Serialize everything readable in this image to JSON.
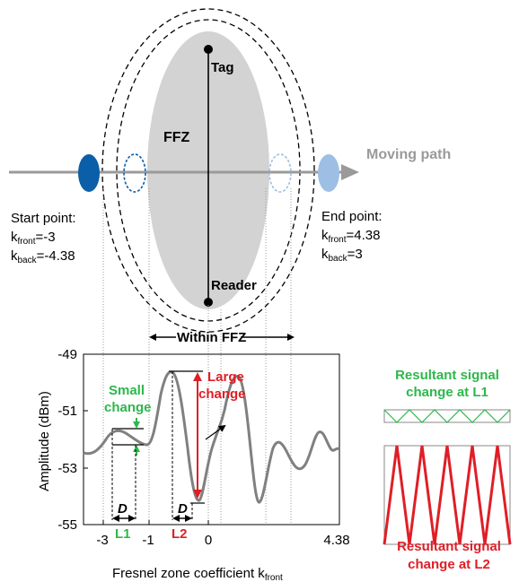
{
  "top": {
    "tag_label": "Tag",
    "ffz_label": "FFZ",
    "reader_label": "Reader",
    "moving_path_label": "Moving path",
    "start": {
      "title": "Start point:",
      "k": "k",
      "front_sub": "front",
      "front_val": "=-3",
      "back_sub": "back",
      "back_val": "=-4.38"
    },
    "end": {
      "title": "End point:",
      "k": "k",
      "front_sub": "front",
      "front_val": "=4.38",
      "back_sub": "back",
      "back_val": "=3"
    },
    "within_label": "Within FFZ"
  },
  "plot": {
    "ylabel": "Amplitude (dBm)",
    "yticks": [
      "-49",
      "-51",
      "-53",
      "-55"
    ],
    "xticks": [
      "-3",
      "-1",
      "0",
      "4.38"
    ],
    "xlabel_main": "Fresnel zone coefficient k",
    "xlabel_sub": "front",
    "small_change_line1": "Small",
    "small_change_line2": "change",
    "large_change_line1": "Large",
    "large_change_line2": "change",
    "D_label": "D",
    "L1_label": "L1",
    "L2_label": "L2"
  },
  "right": {
    "l1_title_line1": "Resultant signal",
    "l1_title_line2": "change at L1",
    "l2_title_line1": "Resultant signal",
    "l2_title_line2": "change at L2"
  },
  "colors": {
    "green": "#2db84b",
    "red": "#e01e26",
    "gray_curve": "#808080",
    "ffz_fill": "#d3d3d3",
    "dark_blue": "#0b5ea8",
    "light_blue": "#9dbfe3",
    "arrow_gray": "#9a9a9a"
  }
}
